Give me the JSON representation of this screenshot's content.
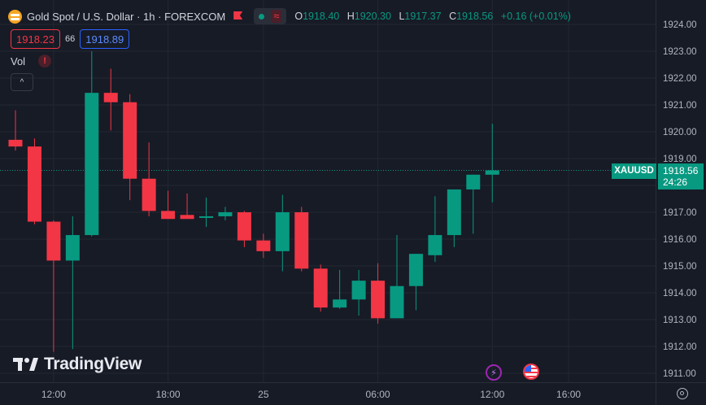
{
  "header": {
    "title": "Gold Spot / U.S. Dollar · 1h · FOREXCOM",
    "ohlc": [
      {
        "key": "O",
        "value": "1918.40"
      },
      {
        "key": "H",
        "value": "1920.30"
      },
      {
        "key": "L",
        "value": "1917.37"
      },
      {
        "key": "C",
        "value": "1918.56"
      }
    ],
    "change": "+0.16 (+0.01%)",
    "symbol_icon": "gold-coin-icon",
    "flag_icon": "flag-icon",
    "status_icon": "market-open-dot-icon",
    "wave_label": "≈"
  },
  "trade": {
    "sell": "1918.23",
    "spread": "66",
    "buy": "1918.89"
  },
  "indicator": {
    "label": "Vol",
    "warning": "!"
  },
  "collapse_label": "^",
  "branding": {
    "logo_text": "TradingView"
  },
  "price_tag": {
    "symbol": "XAUUSD",
    "price": "1918.56",
    "countdown": "24:26"
  },
  "events": [
    {
      "icon": "lightning-icon",
      "glyph": "⚡"
    },
    {
      "icon": "us-flag-icon"
    }
  ],
  "colors": {
    "up": "#089981",
    "down": "#f23645",
    "background": "#171b26",
    "grid": "#232733",
    "axis_text": "#b2b5be",
    "sell": "#f23645",
    "buy": "#2962ff"
  },
  "chart_data": {
    "type": "candlestick",
    "ylim": [
      1910.7,
      1924.3
    ],
    "y_ticks": [
      "1911.00",
      "1912.00",
      "1913.00",
      "1914.00",
      "1915.00",
      "1916.00",
      "1917.00",
      "1918.00",
      "1919.00",
      "1920.00",
      "1921.00",
      "1922.00",
      "1923.00",
      "1924.00"
    ],
    "x_ticks": [
      {
        "label": "12:00",
        "at": 2
      },
      {
        "label": "18:00",
        "at": 8
      },
      {
        "label": "25",
        "at": 13
      },
      {
        "label": "06:00",
        "at": 19
      },
      {
        "label": "12:00",
        "at": 25
      },
      {
        "label": "16:00",
        "at": 29
      }
    ],
    "last_price": 1918.56,
    "candles": [
      {
        "o": 1919.7,
        "h": 1920.8,
        "l": 1919.3,
        "c": 1919.45
      },
      {
        "o": 1919.45,
        "h": 1919.75,
        "l": 1916.55,
        "c": 1916.65
      },
      {
        "o": 1916.65,
        "h": 1916.7,
        "l": 1911.8,
        "c": 1915.2
      },
      {
        "o": 1915.2,
        "h": 1916.85,
        "l": 1911.9,
        "c": 1916.15
      },
      {
        "o": 1916.15,
        "h": 1923.0,
        "l": 1916.1,
        "c": 1921.45
      },
      {
        "o": 1921.45,
        "h": 1922.35,
        "l": 1920.05,
        "c": 1921.1
      },
      {
        "o": 1921.1,
        "h": 1921.4,
        "l": 1917.45,
        "c": 1918.25
      },
      {
        "o": 1918.25,
        "h": 1919.6,
        "l": 1916.85,
        "c": 1917.05
      },
      {
        "o": 1917.05,
        "h": 1917.8,
        "l": 1916.85,
        "c": 1916.75
      },
      {
        "o": 1916.9,
        "h": 1917.7,
        "l": 1916.8,
        "c": 1916.75
      },
      {
        "o": 1916.8,
        "h": 1917.55,
        "l": 1916.45,
        "c": 1916.85
      },
      {
        "o": 1916.85,
        "h": 1917.2,
        "l": 1916.7,
        "c": 1917.0
      },
      {
        "o": 1917.0,
        "h": 1917.05,
        "l": 1915.7,
        "c": 1915.95
      },
      {
        "o": 1915.95,
        "h": 1916.2,
        "l": 1915.3,
        "c": 1915.55
      },
      {
        "o": 1915.55,
        "h": 1917.65,
        "l": 1914.8,
        "c": 1917.0
      },
      {
        "o": 1917.0,
        "h": 1917.2,
        "l": 1914.8,
        "c": 1914.9
      },
      {
        "o": 1914.9,
        "h": 1915.05,
        "l": 1913.3,
        "c": 1913.45
      },
      {
        "o": 1913.45,
        "h": 1914.85,
        "l": 1913.4,
        "c": 1913.75
      },
      {
        "o": 1913.75,
        "h": 1914.85,
        "l": 1913.15,
        "c": 1914.45
      },
      {
        "o": 1914.45,
        "h": 1915.1,
        "l": 1912.85,
        "c": 1913.05
      },
      {
        "o": 1913.05,
        "h": 1916.15,
        "l": 1913.05,
        "c": 1914.25
      },
      {
        "o": 1914.25,
        "h": 1915.45,
        "l": 1913.35,
        "c": 1915.45
      },
      {
        "o": 1915.4,
        "h": 1917.6,
        "l": 1915.15,
        "c": 1916.15
      },
      {
        "o": 1916.15,
        "h": 1917.85,
        "l": 1915.7,
        "c": 1917.85
      },
      {
        "o": 1917.85,
        "h": 1918.4,
        "l": 1916.2,
        "c": 1918.4
      },
      {
        "o": 1918.4,
        "h": 1920.3,
        "l": 1917.37,
        "c": 1918.56
      }
    ]
  }
}
